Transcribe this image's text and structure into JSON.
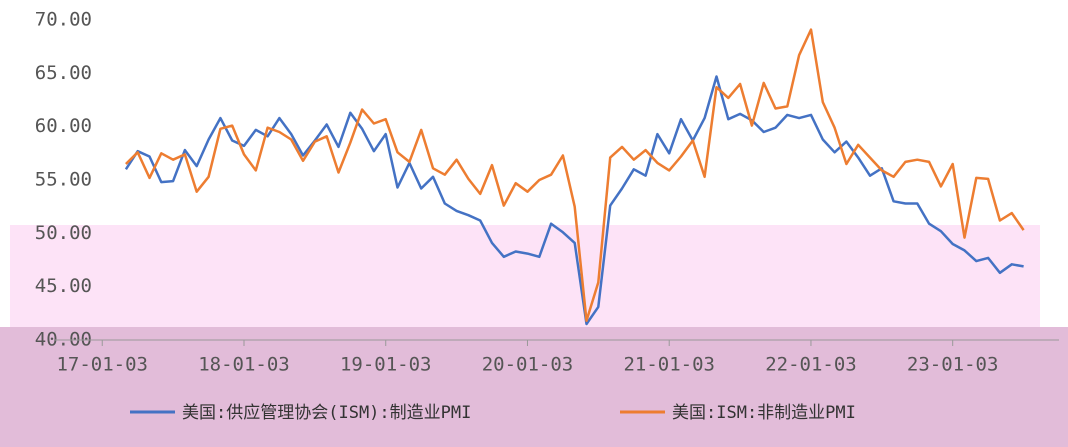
{
  "chart_data": {
    "type": "line",
    "x": [
      "17-03-03",
      "17-04-03",
      "17-05-03",
      "17-06-03",
      "17-07-03",
      "17-08-03",
      "17-09-03",
      "17-10-03",
      "17-11-03",
      "17-12-03",
      "18-01-03",
      "18-02-03",
      "18-03-03",
      "18-04-03",
      "18-05-03",
      "18-06-03",
      "18-07-03",
      "18-08-03",
      "18-09-03",
      "18-10-03",
      "18-11-03",
      "18-12-03",
      "19-01-03",
      "19-02-03",
      "19-03-03",
      "19-04-03",
      "19-05-03",
      "19-06-03",
      "19-07-03",
      "19-08-03",
      "19-09-03",
      "19-10-03",
      "19-11-03",
      "19-12-03",
      "20-01-03",
      "20-02-03",
      "20-03-03",
      "20-04-03",
      "20-05-03",
      "20-06-03",
      "20-07-03",
      "20-08-03",
      "20-09-03",
      "20-10-03",
      "20-11-03",
      "20-12-03",
      "21-01-03",
      "21-02-03",
      "21-03-03",
      "21-04-03",
      "21-05-03",
      "21-06-03",
      "21-07-03",
      "21-08-03",
      "21-09-03",
      "21-10-03",
      "21-11-03",
      "21-12-03",
      "22-01-03",
      "22-02-03",
      "22-03-03",
      "22-04-03",
      "22-05-03",
      "22-06-03",
      "22-07-03",
      "22-08-03",
      "22-09-03",
      "22-10-03",
      "22-11-03",
      "22-12-03",
      "23-01-03",
      "23-02-03",
      "23-03-03",
      "23-04-03",
      "23-05-03",
      "23-06-03",
      "23-07-03"
    ],
    "series": [
      {
        "name": "美国:供应管理协会(ISM):制造业PMI",
        "color": "#4472c4",
        "values": [
          56.0,
          57.7,
          57.2,
          54.8,
          54.9,
          57.8,
          56.3,
          58.8,
          60.8,
          58.7,
          58.2,
          59.7,
          59.1,
          60.8,
          59.3,
          57.3,
          58.7,
          60.2,
          58.1,
          61.3,
          59.8,
          57.7,
          59.3,
          54.3,
          56.6,
          54.2,
          55.3,
          52.8,
          52.1,
          51.7,
          51.2,
          49.1,
          47.8,
          48.3,
          48.1,
          47.8,
          50.9,
          50.1,
          49.1,
          41.5,
          43.1,
          52.6,
          54.2,
          56.0,
          55.4,
          59.3,
          57.5,
          60.7,
          58.7,
          60.8,
          64.7,
          60.7,
          61.2,
          60.6,
          59.5,
          59.9,
          61.1,
          60.8,
          61.1,
          58.8,
          57.6,
          58.6,
          57.1,
          55.4,
          56.1,
          53.0,
          52.8,
          52.8,
          50.9,
          50.2,
          49.0,
          48.4,
          47.4,
          47.7,
          46.3,
          47.1,
          46.9
        ]
      },
      {
        "name": "美国:ISM:非制造业PMI",
        "color": "#ed7d31",
        "values": [
          56.5,
          57.6,
          55.2,
          57.5,
          56.9,
          57.4,
          53.9,
          55.3,
          59.8,
          60.1,
          57.4,
          55.9,
          59.9,
          59.5,
          58.8,
          56.8,
          58.6,
          59.1,
          55.7,
          58.5,
          61.6,
          60.3,
          60.7,
          57.6,
          56.7,
          59.7,
          56.1,
          55.5,
          56.9,
          55.1,
          53.7,
          56.4,
          52.6,
          54.7,
          53.9,
          55.0,
          55.5,
          57.3,
          52.5,
          41.8,
          45.4,
          57.1,
          58.1,
          56.9,
          57.8,
          56.6,
          55.9,
          57.2,
          58.7,
          55.3,
          63.7,
          62.7,
          64.0,
          60.1,
          64.1,
          61.7,
          61.9,
          66.7,
          69.1,
          62.3,
          59.9,
          56.5,
          58.3,
          57.1,
          55.9,
          55.3,
          56.7,
          56.9,
          56.7,
          54.4,
          56.5,
          49.6,
          55.2,
          55.1,
          51.2,
          51.9,
          50.3
        ]
      }
    ],
    "xlim": [
      "16-09-03",
      "23-10-03"
    ],
    "xticks": [
      "17-01-03",
      "18-01-03",
      "19-01-03",
      "20-01-03",
      "21-01-03",
      "22-01-03",
      "23-01-03"
    ],
    "ylim": [
      40,
      70
    ],
    "yticks": [
      {
        "value": 40,
        "label": "40.00"
      },
      {
        "value": 45,
        "label": "45.00"
      },
      {
        "value": 50,
        "label": "50.00"
      },
      {
        "value": 55,
        "label": "55.00"
      },
      {
        "value": 60,
        "label": "60.00"
      },
      {
        "value": 65,
        "label": "65.00"
      },
      {
        "value": 70,
        "label": "70.00"
      }
    ],
    "legend": "bottom"
  }
}
